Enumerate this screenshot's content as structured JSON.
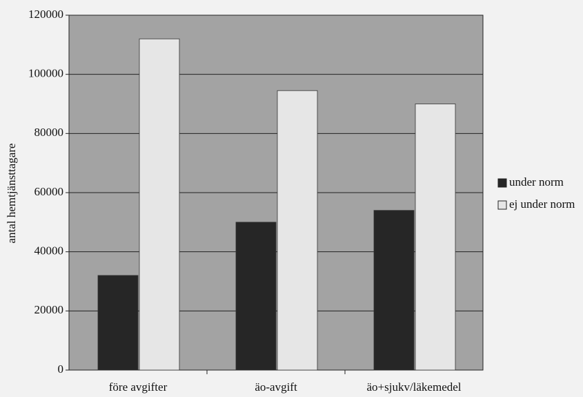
{
  "chart_data": {
    "type": "bar",
    "y_label": "antal hemtjänsttagare",
    "categories": [
      "före avgifter",
      "äo-avgift",
      "äo+sjukv/läkemedel"
    ],
    "series": [
      {
        "name": "under norm",
        "color": "#262626",
        "values": [
          32000,
          50000,
          54000
        ]
      },
      {
        "name": "ej under norm",
        "color": "#e6e6e6",
        "values": [
          112000,
          94500,
          90000
        ]
      }
    ],
    "ylim": [
      0,
      120000
    ],
    "yticks": [
      0,
      20000,
      40000,
      60000,
      80000,
      100000,
      120000
    ],
    "grid": true,
    "legend": "right"
  }
}
